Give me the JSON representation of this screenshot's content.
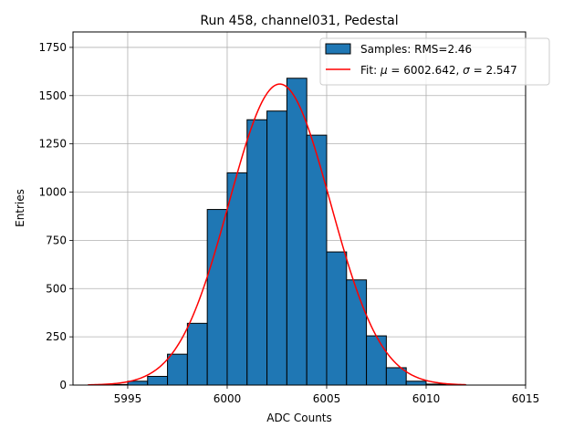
{
  "chart_data": {
    "type": "bar",
    "title": "Run 458, channel031, Pedestal",
    "xlabel": "ADC Counts",
    "ylabel": "Entries",
    "xlim": [
      5992.25,
      6015
    ],
    "ylim": [
      0,
      1830
    ],
    "xticks": [
      5995,
      6000,
      6005,
      6010,
      6015
    ],
    "yticks": [
      0,
      250,
      500,
      750,
      1000,
      1250,
      1500,
      1750
    ],
    "grid": true,
    "legend_position": "top-right",
    "histogram": {
      "name": "Samples: RMS=2.46",
      "color": "#1f77b4",
      "bin_edges": [
        5994,
        5995,
        5996,
        5997,
        5998,
        5999,
        6000,
        6001,
        6002,
        6003,
        6004,
        6005,
        6006,
        6007,
        6008,
        6009,
        6010,
        6011,
        6012
      ],
      "counts": [
        3,
        20,
        45,
        160,
        320,
        910,
        1100,
        1375,
        1420,
        1590,
        1295,
        690,
        545,
        255,
        90,
        20,
        5,
        1
      ]
    },
    "fit": {
      "name_prefix": "Fit: ",
      "name_mu": "μ",
      "name_mid": " = 6002.642, ",
      "name_sigma": "σ",
      "name_suffix": " = 2.547",
      "color": "#ff0000",
      "mu": 6002.642,
      "sigma": 2.547,
      "amplitude": 1560,
      "x_range": [
        5993,
        6012
      ]
    }
  }
}
